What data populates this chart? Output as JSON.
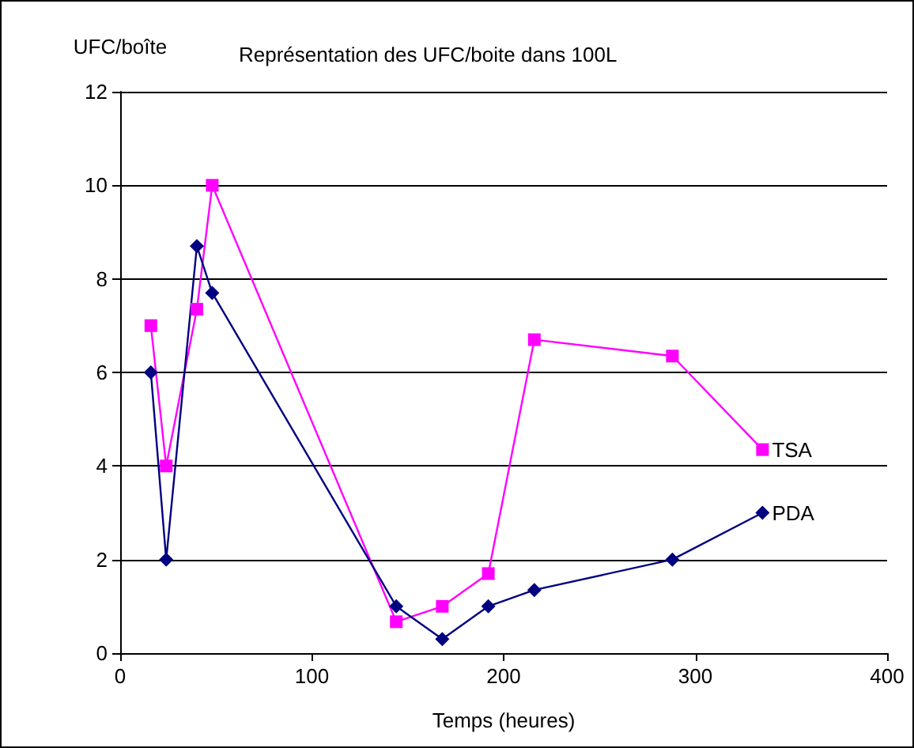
{
  "chart_data": {
    "type": "line",
    "title": "Représentation des UFC/boite dans 100L",
    "xlabel": "Temps (heures)",
    "ylabel": "UFC/boîte",
    "xlim": [
      0,
      400
    ],
    "xticks": [
      0,
      100,
      200,
      300,
      400
    ],
    "ylim": [
      0,
      12
    ],
    "yticks": [
      0,
      2,
      4,
      6,
      8,
      10,
      12
    ],
    "grid": "y",
    "legend": false,
    "series": [
      {
        "name": "TSA",
        "color": "#ff00ff",
        "marker": "square",
        "x": [
          16,
          24,
          40,
          48,
          144,
          168,
          192,
          216,
          288,
          335
        ],
        "values": [
          7.0,
          4.0,
          7.35,
          10.0,
          0.67,
          1.0,
          1.7,
          6.7,
          6.35,
          4.35
        ]
      },
      {
        "name": "PDA",
        "color": "#000080",
        "marker": "diamond",
        "x": [
          16,
          24,
          40,
          48,
          144,
          168,
          192,
          216,
          288,
          335
        ],
        "values": [
          6.0,
          2.0,
          8.7,
          7.7,
          1.0,
          0.3,
          1.0,
          1.35,
          2.0,
          3.0
        ]
      }
    ]
  }
}
